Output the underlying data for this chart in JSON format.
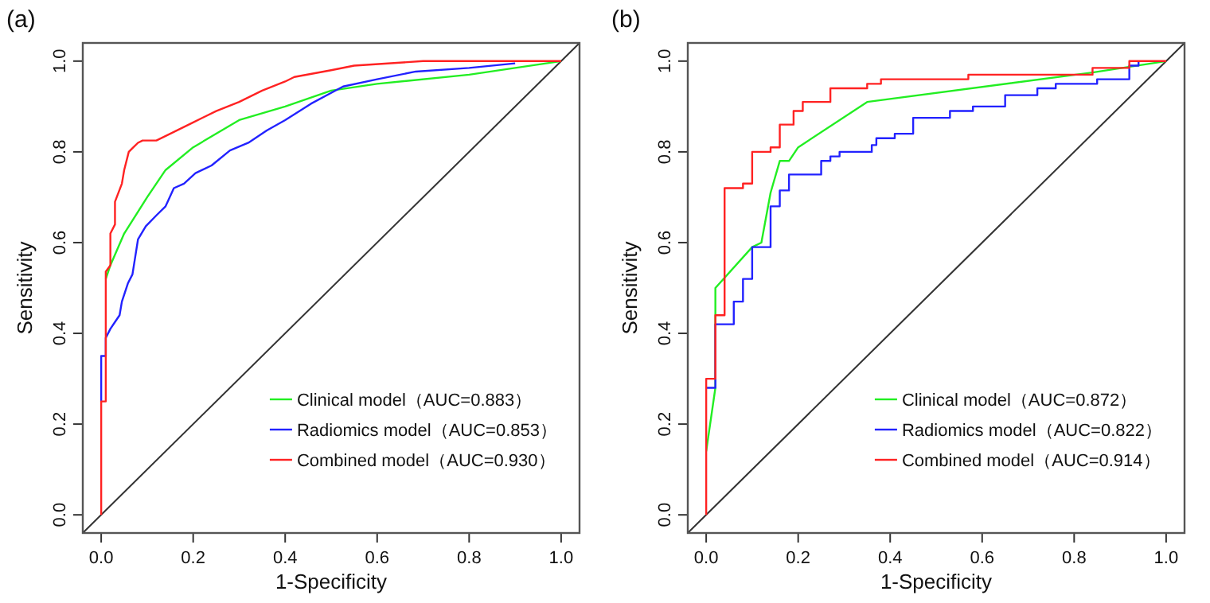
{
  "chart_data": [
    {
      "type": "line",
      "title": "(a)",
      "xlabel": "1-Specificity",
      "ylabel": "Sensitivity",
      "xlim": [
        -0.04,
        1.04
      ],
      "ylim": [
        -0.04,
        1.04
      ],
      "xticks": [
        {
          "value": 0,
          "label": "0.0"
        },
        {
          "value": 0.2,
          "label": "0.2"
        },
        {
          "value": 0.4,
          "label": "0.4"
        },
        {
          "value": 0.6,
          "label": "0.6"
        },
        {
          "value": 0.8,
          "label": "0.8"
        },
        {
          "value": 1,
          "label": "1.0"
        }
      ],
      "yticks": [
        {
          "value": 0,
          "label": "0.0"
        },
        {
          "value": 0.2,
          "label": "0.2"
        },
        {
          "value": 0.4,
          "label": "0.4"
        },
        {
          "value": 0.6,
          "label": "0.6"
        },
        {
          "value": 0.8,
          "label": "0.8"
        },
        {
          "value": 1,
          "label": "1.0"
        }
      ],
      "legend": "bottom right",
      "series": [
        {
          "color": "#333333",
          "x": [
            -0.04,
            1.04
          ],
          "values": [
            -0.04,
            1.04
          ]
        },
        {
          "name": "Clinical model（AUC=0.883）",
          "color": "#22ee22",
          "x": [
            0.01,
            0.02,
            0.05,
            0.1,
            0.14,
            0.2,
            0.3,
            0.4,
            0.5,
            0.6,
            0.8,
            1
          ],
          "values": [
            0.52,
            0.55,
            0.62,
            0.7,
            0.76,
            0.81,
            0.87,
            0.9,
            0.935,
            0.95,
            0.97,
            1
          ]
        },
        {
          "name": "Radiomics model（AUC=0.853）",
          "color": "#2222ff",
          "x": [
            0,
            0,
            0.01,
            0.01,
            0.02,
            0.03,
            0.04,
            0.045,
            0.058,
            0.068,
            0.08,
            0.097,
            0.12,
            0.14,
            0.158,
            0.18,
            0.205,
            0.24,
            0.28,
            0.32,
            0.36,
            0.4,
            0.456,
            0.5,
            0.526,
            0.6,
            0.684,
            0.8,
            0.9
          ],
          "values": [
            0.25,
            0.35,
            0.35,
            0.39,
            0.41,
            0.425,
            0.44,
            0.47,
            0.51,
            0.53,
            0.607,
            0.636,
            0.66,
            0.68,
            0.72,
            0.73,
            0.753,
            0.77,
            0.803,
            0.82,
            0.847,
            0.87,
            0.906,
            0.93,
            0.944,
            0.96,
            0.977,
            0.985,
            0.995
          ]
        },
        {
          "name": "Combined model（AUC=0.930）",
          "color": "#ff2222",
          "x": [
            0,
            0,
            0.01,
            0.01,
            0.02,
            0.02,
            0.03,
            0.03,
            0.045,
            0.05,
            0.06,
            0.07,
            0.08,
            0.09,
            0.12,
            0.15,
            0.2,
            0.25,
            0.3,
            0.35,
            0.4,
            0.42,
            0.5,
            0.55,
            0.7,
            1
          ],
          "values": [
            0,
            0.25,
            0.25,
            0.536,
            0.55,
            0.62,
            0.64,
            0.69,
            0.73,
            0.76,
            0.8,
            0.81,
            0.82,
            0.825,
            0.825,
            0.84,
            0.865,
            0.89,
            0.91,
            0.935,
            0.955,
            0.965,
            0.98,
            0.99,
            1,
            1
          ]
        }
      ]
    },
    {
      "type": "line",
      "title": "(b)",
      "xlabel": "1-Specificity",
      "ylabel": "Sensitivity",
      "xlim": [
        -0.04,
        1.04
      ],
      "ylim": [
        -0.04,
        1.04
      ],
      "xticks": [
        {
          "value": 0,
          "label": "0.0"
        },
        {
          "value": 0.2,
          "label": "0.2"
        },
        {
          "value": 0.4,
          "label": "0.4"
        },
        {
          "value": 0.6,
          "label": "0.6"
        },
        {
          "value": 0.8,
          "label": "0.8"
        },
        {
          "value": 1,
          "label": "1.0"
        }
      ],
      "yticks": [
        {
          "value": 0,
          "label": "0.0"
        },
        {
          "value": 0.2,
          "label": "0.2"
        },
        {
          "value": 0.4,
          "label": "0.4"
        },
        {
          "value": 0.6,
          "label": "0.6"
        },
        {
          "value": 0.8,
          "label": "0.8"
        },
        {
          "value": 1,
          "label": "1.0"
        }
      ],
      "legend": "bottom right",
      "series": [
        {
          "color": "#333333",
          "x": [
            -0.04,
            1.04
          ],
          "values": [
            -0.04,
            1.04
          ]
        },
        {
          "name": "Clinical model（AUC=0.872）",
          "color": "#22ee22",
          "x": [
            0,
            0.02,
            0.02,
            0.1,
            0.12,
            0.14,
            0.16,
            0.18,
            0.2,
            0.35,
            0.84,
            1
          ],
          "values": [
            0.14,
            0.28,
            0.5,
            0.59,
            0.6,
            0.71,
            0.78,
            0.78,
            0.81,
            0.91,
            0.975,
            1
          ]
        },
        {
          "name": "Radiomics model（AUC=0.822）",
          "color": "#2222ff",
          "x": [
            0,
            0.02,
            0.02,
            0.06,
            0.06,
            0.08,
            0.08,
            0.1,
            0.1,
            0.14,
            0.14,
            0.16,
            0.16,
            0.18,
            0.18,
            0.25,
            0.25,
            0.27,
            0.27,
            0.29,
            0.29,
            0.36,
            0.36,
            0.37,
            0.37,
            0.41,
            0.41,
            0.45,
            0.45,
            0.53,
            0.53,
            0.58,
            0.58,
            0.65,
            0.65,
            0.72,
            0.72,
            0.76,
            0.76,
            0.85,
            0.85,
            0.92,
            0.92,
            0.94,
            0.94
          ],
          "values": [
            0.28,
            0.28,
            0.42,
            0.42,
            0.47,
            0.47,
            0.52,
            0.52,
            0.59,
            0.59,
            0.68,
            0.68,
            0.715,
            0.715,
            0.75,
            0.75,
            0.78,
            0.78,
            0.79,
            0.79,
            0.8,
            0.8,
            0.815,
            0.815,
            0.83,
            0.83,
            0.84,
            0.84,
            0.875,
            0.875,
            0.89,
            0.89,
            0.9,
            0.9,
            0.925,
            0.925,
            0.94,
            0.94,
            0.95,
            0.95,
            0.96,
            0.96,
            0.99,
            0.99,
            1
          ]
        },
        {
          "name": "Combined model（AUC=0.914）",
          "color": "#ff2222",
          "x": [
            0,
            0,
            0.02,
            0.02,
            0.04,
            0.04,
            0.08,
            0.08,
            0.1,
            0.1,
            0.14,
            0.14,
            0.16,
            0.16,
            0.19,
            0.19,
            0.21,
            0.21,
            0.27,
            0.27,
            0.35,
            0.35,
            0.38,
            0.38,
            0.57,
            0.57,
            0.84,
            0.84,
            0.92,
            0.92,
            1
          ],
          "values": [
            0,
            0.3,
            0.3,
            0.44,
            0.44,
            0.72,
            0.72,
            0.73,
            0.73,
            0.8,
            0.8,
            0.81,
            0.81,
            0.86,
            0.86,
            0.89,
            0.89,
            0.91,
            0.91,
            0.94,
            0.94,
            0.95,
            0.95,
            0.96,
            0.96,
            0.97,
            0.97,
            0.985,
            0.985,
            1,
            1
          ]
        }
      ]
    }
  ]
}
